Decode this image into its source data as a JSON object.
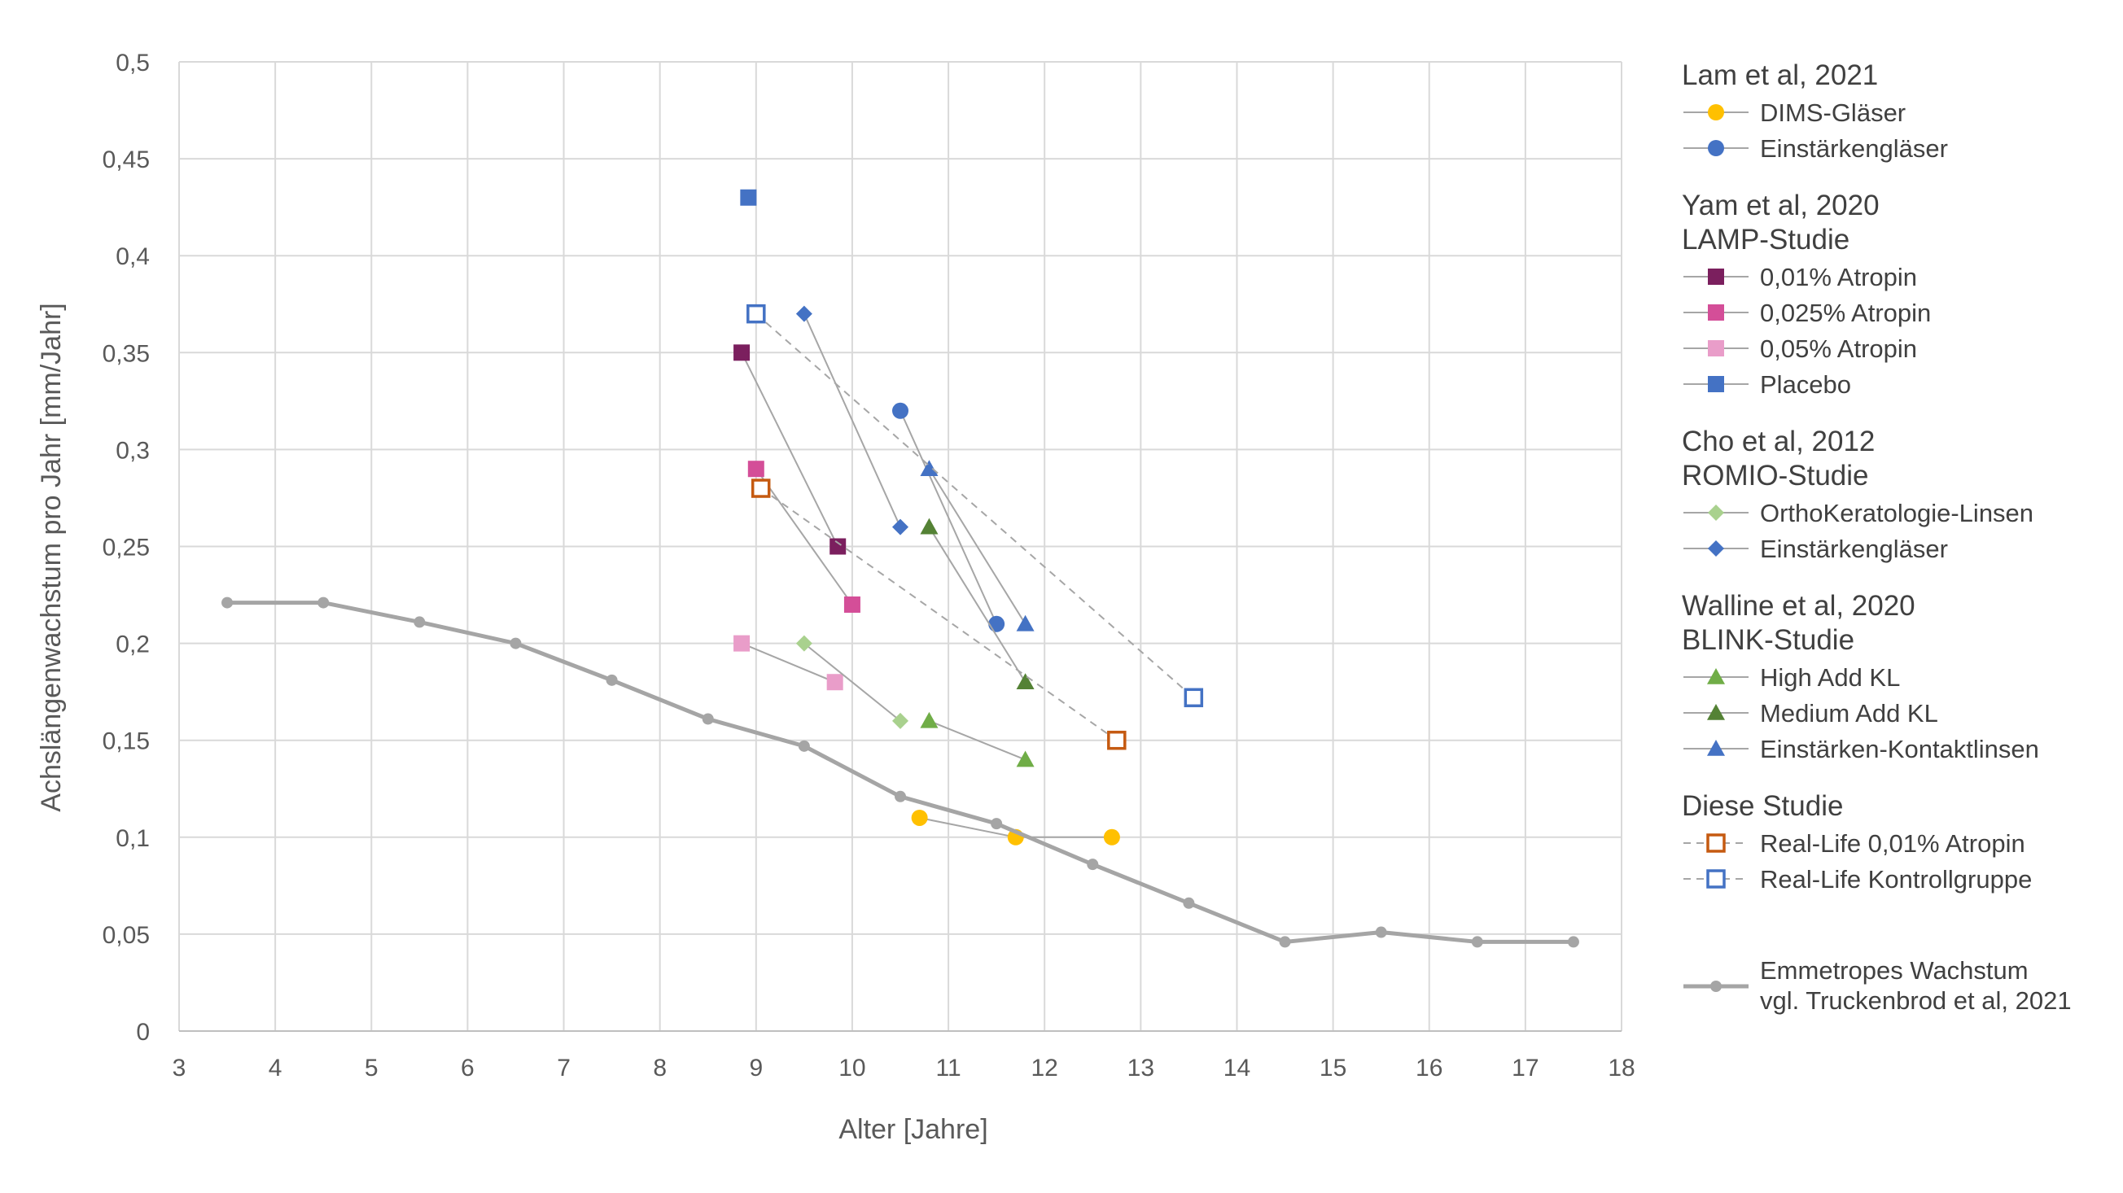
{
  "chart_data": {
    "type": "scatter",
    "title": "",
    "xlabel": "Alter [Jahre]",
    "ylabel": "Achslängenwachstum pro Jahr [mm/Jahr]",
    "xlim": [
      3,
      18
    ],
    "ylim": [
      0,
      0.5
    ],
    "x_ticks": [
      3,
      4,
      5,
      6,
      7,
      8,
      9,
      10,
      11,
      12,
      13,
      14,
      15,
      16,
      17,
      18
    ],
    "y_ticks": [
      0,
      0.05,
      0.1,
      0.15,
      0.2,
      0.25,
      0.3,
      0.35,
      0.4,
      0.45,
      0.5
    ],
    "x_tick_labels": [
      "3",
      "4",
      "5",
      "6",
      "7",
      "8",
      "9",
      "10",
      "11",
      "12",
      "13",
      "14",
      "15",
      "16",
      "17",
      "18"
    ],
    "y_tick_labels": [
      "0",
      "0,05",
      "0,1",
      "0,15",
      "0,2",
      "0,25",
      "0,3",
      "0,35",
      "0,4",
      "0,45",
      "0,5"
    ],
    "grid": true,
    "legend_position": "right",
    "legend_groups": [
      {
        "title_lines": [
          "Lam et al, 2021"
        ],
        "series": [
          0,
          1
        ]
      },
      {
        "title_lines": [
          "Yam et al, 2020",
          "LAMP-Studie"
        ],
        "series": [
          2,
          3,
          4,
          5
        ]
      },
      {
        "title_lines": [
          "Cho et al, 2012",
          "ROMIO-Studie"
        ],
        "series": [
          6,
          7
        ]
      },
      {
        "title_lines": [
          "Walline et al, 2020",
          "BLINK-Studie"
        ],
        "series": [
          8,
          9,
          10
        ]
      },
      {
        "title_lines": [
          "Diese Studie"
        ],
        "series": [
          11,
          12
        ]
      },
      {
        "title_lines": [],
        "series": [
          13
        ]
      }
    ],
    "series": [
      {
        "name": "DIMS-Gläser",
        "marker": "circle",
        "filled": true,
        "color": "#FFC000",
        "line": "solid",
        "points": [
          [
            10.7,
            0.11
          ],
          [
            11.7,
            0.1
          ],
          [
            12.7,
            0.1
          ]
        ]
      },
      {
        "name": "Einstärkengläser",
        "marker": "circle",
        "filled": true,
        "color": "#4472C4",
        "line": "solid",
        "points": [
          [
            10.5,
            0.32
          ],
          [
            11.5,
            0.21
          ]
        ]
      },
      {
        "name": "0,01% Atropin",
        "marker": "square",
        "filled": true,
        "color": "#7B1F5E",
        "line": "solid",
        "points": [
          [
            8.85,
            0.35
          ],
          [
            9.85,
            0.25
          ]
        ]
      },
      {
        "name": "0,025% Atropin",
        "marker": "square",
        "filled": true,
        "color": "#D44E98",
        "line": "solid",
        "points": [
          [
            9.0,
            0.29
          ],
          [
            10.0,
            0.22
          ]
        ]
      },
      {
        "name": "0,05% Atropin",
        "marker": "square",
        "filled": true,
        "color": "#E99DC9",
        "line": "solid",
        "points": [
          [
            8.85,
            0.2
          ],
          [
            9.82,
            0.18
          ]
        ]
      },
      {
        "name": "Placebo",
        "marker": "square",
        "filled": true,
        "color": "#4472C4",
        "line": "solid",
        "points": [
          [
            8.92,
            0.43
          ]
        ]
      },
      {
        "name": "OrthoKeratologie-Linsen",
        "marker": "diamond",
        "filled": true,
        "color": "#A9D18E",
        "line": "solid",
        "points": [
          [
            9.5,
            0.2
          ],
          [
            10.5,
            0.16
          ]
        ]
      },
      {
        "name": "Einstärkengläser",
        "marker": "diamond",
        "filled": true,
        "color": "#4472C4",
        "line": "solid",
        "points": [
          [
            9.5,
            0.37
          ],
          [
            10.5,
            0.26
          ]
        ]
      },
      {
        "name": "High Add KL",
        "marker": "triangle",
        "filled": true,
        "color": "#70AD47",
        "line": "solid",
        "points": [
          [
            10.8,
            0.16
          ],
          [
            11.8,
            0.14
          ]
        ]
      },
      {
        "name": "Medium Add KL",
        "marker": "triangle",
        "filled": true,
        "color": "#548235",
        "line": "solid",
        "points": [
          [
            10.8,
            0.26
          ],
          [
            11.8,
            0.18
          ]
        ]
      },
      {
        "name": "Einstärken-Kontaktlinsen",
        "marker": "triangle",
        "filled": true,
        "color": "#4472C4",
        "line": "solid",
        "points": [
          [
            10.8,
            0.29
          ],
          [
            11.8,
            0.21
          ]
        ]
      },
      {
        "name": "Real-Life 0,01% Atropin",
        "marker": "square",
        "filled": false,
        "color": "#C55A11",
        "line": "dashed",
        "points": [
          [
            9.05,
            0.28
          ],
          [
            12.75,
            0.15
          ]
        ]
      },
      {
        "name": "Real-Life Kontrollgruppe",
        "marker": "square",
        "filled": false,
        "color": "#4472C4",
        "line": "dashed",
        "points": [
          [
            9.0,
            0.37
          ],
          [
            13.55,
            0.172
          ]
        ]
      },
      {
        "name_lines": [
          "Emmetropes Wachstum",
          "vgl. Truckenbrod et al, 2021"
        ],
        "marker": "smallcircle",
        "filled": true,
        "color": "#A5A5A5",
        "line": "thick",
        "points": [
          [
            3.5,
            0.221
          ],
          [
            4.5,
            0.221
          ],
          [
            5.5,
            0.211
          ],
          [
            6.5,
            0.2
          ],
          [
            7.5,
            0.181
          ],
          [
            8.5,
            0.161
          ],
          [
            9.5,
            0.147
          ],
          [
            10.5,
            0.121
          ],
          [
            11.5,
            0.107
          ],
          [
            12.5,
            0.086
          ],
          [
            13.5,
            0.066
          ],
          [
            14.5,
            0.046
          ],
          [
            15.5,
            0.051
          ],
          [
            16.5,
            0.046
          ],
          [
            17.5,
            0.046
          ]
        ]
      }
    ]
  }
}
